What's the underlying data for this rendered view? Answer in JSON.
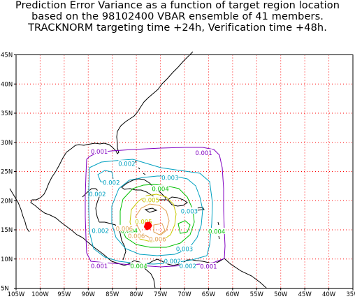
{
  "title": {
    "line1": "Prediction Error Variance as a function of target region location",
    "line2": "based on the 98102400 VBAR ensemble of 41 members.",
    "line3": "TRACKNORM targeting time +24h, Verification time +48h."
  },
  "axes": {
    "lon_ticks": [
      "105W",
      "100W",
      "95W",
      "90W",
      "85W",
      "80W",
      "75W",
      "70W",
      "65W",
      "60W",
      "55W",
      "50W",
      "45W",
      "40W",
      "35W"
    ],
    "lat_ticks": [
      "5N",
      "10N",
      "15N",
      "20N",
      "25N",
      "30N",
      "35N",
      "40N",
      "45N"
    ],
    "lon_range": [
      -105,
      -35
    ],
    "lat_range": [
      5,
      45
    ],
    "grid": "dotted red"
  },
  "colors": {
    "c0001": "#8000c0",
    "c0002": "#00a0c0",
    "c0003": "#00a0c0",
    "c0004": "#00c000",
    "c0005": "#c8c800",
    "c0006": "#e0a050",
    "c0007": "#ff0000",
    "grid": "#ff0000",
    "coast": "#000000"
  },
  "contour_labels": [
    {
      "text": "0.001",
      "lon": -87.7,
      "lat": 28.4,
      "color": "c0001"
    },
    {
      "text": "0.001",
      "lon": -66.0,
      "lat": 28.2,
      "color": "c0001"
    },
    {
      "text": "0.001",
      "lon": -87.7,
      "lat": 8.8,
      "color": "c0001"
    },
    {
      "text": "0.001",
      "lon": -65.0,
      "lat": 8.7,
      "color": "c0001"
    },
    {
      "text": "0.002",
      "lon": -82.0,
      "lat": 26.3,
      "color": "c0002"
    },
    {
      "text": "0.002",
      "lon": -85.2,
      "lat": 23.1,
      "color": "c0002"
    },
    {
      "text": "0.002",
      "lon": -88.1,
      "lat": 21.1,
      "color": "c0002"
    },
    {
      "text": "0.002",
      "lon": -87.5,
      "lat": 14.8,
      "color": "c0002"
    },
    {
      "text": "0.002",
      "lon": -72.5,
      "lat": 9.6,
      "color": "c0002"
    },
    {
      "text": "0.002",
      "lon": -69.3,
      "lat": 8.8,
      "color": "c0002"
    },
    {
      "text": "0.003",
      "lon": -73.0,
      "lat": 23.9,
      "color": "c0003"
    },
    {
      "text": "0.003",
      "lon": -69.0,
      "lat": 18.2,
      "color": "c0003"
    },
    {
      "text": "0.003",
      "lon": -70.0,
      "lat": 11.7,
      "color": "c0003"
    },
    {
      "text": "0.004",
      "lon": -75.0,
      "lat": 22.0,
      "color": "c0004"
    },
    {
      "text": "0.004",
      "lon": -81.5,
      "lat": 14.8,
      "color": "c0004"
    },
    {
      "text": "0.004",
      "lon": -79.5,
      "lat": 8.8,
      "color": "c0004"
    },
    {
      "text": "0.004",
      "lon": -63.3,
      "lat": 14.7,
      "color": "c0004"
    },
    {
      "text": "0.005",
      "lon": -77.0,
      "lat": 20.1,
      "color": "c0005"
    },
    {
      "text": "0.005",
      "lon": -78.5,
      "lat": 16.4,
      "color": "c0005"
    },
    {
      "text": "0.006",
      "lon": -82.5,
      "lat": 15.2,
      "color": "c0006"
    },
    {
      "text": "0.006",
      "lon": -80.0,
      "lat": 13.9,
      "color": "c0006"
    },
    {
      "text": "0.006",
      "lon": -75.6,
      "lat": 13.4,
      "color": "c0006"
    }
  ],
  "maximum": {
    "lon": -77.5,
    "lat": 15.5,
    "color": "c0007"
  }
}
